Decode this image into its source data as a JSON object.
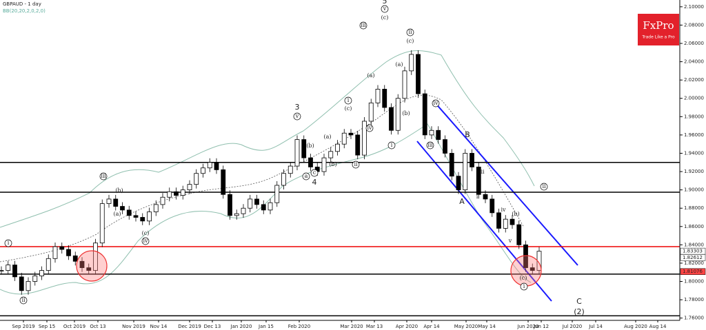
{
  "chart_data": {
    "type": "candlestick",
    "title": "GBPAUD - 1 day",
    "subtitle": "BB(20,20,2,0,2,0)",
    "brand": "FxPro",
    "brand_tagline": "Trade Like a Pro",
    "x_labels": [
      "Sep 2019",
      "Sep 15",
      "Oct 2019",
      "Oct 13",
      "Nov 2019",
      "Nov 14",
      "Dec 2019",
      "Dec 13",
      "Jan 2020",
      "Jan 15",
      "Feb 2020",
      "Mar 2020",
      "Mar 13",
      "Apr 2020",
      "Apr 14",
      "May 2020",
      "May 14",
      "Jun 2020",
      "Jun 12",
      "Jul 2020",
      "Jul 14",
      "Aug 2020",
      "Aug 14"
    ],
    "close": [
      1.812,
      1.818,
      1.805,
      1.79,
      1.8,
      1.806,
      1.812,
      1.825,
      1.838,
      1.835,
      1.828,
      1.822,
      1.815,
      1.812,
      1.842,
      1.885,
      1.89,
      1.882,
      1.878,
      1.872,
      1.87,
      1.866,
      1.876,
      1.884,
      1.892,
      1.898,
      1.894,
      1.9,
      1.906,
      1.918,
      1.924,
      1.93,
      1.922,
      1.895,
      1.872,
      1.874,
      1.88,
      1.89,
      1.884,
      1.878,
      1.886,
      1.905,
      1.918,
      1.926,
      1.955,
      1.935,
      1.925,
      1.92,
      1.935,
      1.942,
      1.95,
      1.962,
      1.96,
      1.938,
      1.975,
      1.995,
      2.01,
      1.99,
      1.965,
      2.0,
      2.03,
      2.048,
      2.005,
      1.96,
      1.965,
      1.955,
      1.94,
      1.915,
      1.9,
      1.94,
      1.925,
      1.895,
      1.89,
      1.875,
      1.858,
      1.868,
      1.862,
      1.84,
      1.815,
      1.812,
      1.833
    ],
    "ylim": [
      1.7575,
      2.1074
    ],
    "yticks": [
      {
        "value": 1.76,
        "label": "1.76000"
      },
      {
        "value": 1.78,
        "label": "1.78000"
      },
      {
        "value": 1.8,
        "label": "1.80000"
      },
      {
        "value": 1.82,
        "label": "1.82000"
      },
      {
        "value": 1.84,
        "label": "1.84000"
      },
      {
        "value": 1.86,
        "label": "1.86000"
      },
      {
        "value": 1.88,
        "label": "1.88000"
      },
      {
        "value": 1.9,
        "label": "1.90000"
      },
      {
        "value": 1.92,
        "label": "1.92000"
      },
      {
        "value": 1.94,
        "label": "1.94000"
      },
      {
        "value": 1.96,
        "label": "1.96000"
      },
      {
        "value": 1.98,
        "label": "1.98000"
      },
      {
        "value": 2.0,
        "label": "2.00000"
      },
      {
        "value": 2.02,
        "label": "2.02000"
      },
      {
        "value": 2.04,
        "label": "2.04000"
      },
      {
        "value": 2.06,
        "label": "2.06000"
      },
      {
        "value": 2.08,
        "label": "2.08000"
      },
      {
        "value": 2.1,
        "label": "2.10000"
      }
    ],
    "price_labels": [
      {
        "value": 1.83303,
        "color": "#ffffff"
      },
      {
        "value": 1.82612,
        "color": "#ffffff"
      },
      {
        "value": 1.81076,
        "color": "#ff4444"
      }
    ],
    "levels": [
      {
        "value": 1.93,
        "color": "#000000"
      },
      {
        "value": 1.8975,
        "color": "#000000"
      },
      {
        "value": 1.838,
        "color": "#ee0000"
      },
      {
        "value": 1.808,
        "color": "#000000"
      },
      {
        "value": 1.7625,
        "color": "#000000"
      }
    ],
    "annotations": [
      {
        "text": "3",
        "circled": false
      },
      {
        "text": "v",
        "circled": true
      },
      {
        "text": "4",
        "circled": false
      },
      {
        "text": "5",
        "circled": false
      },
      {
        "text": "v",
        "circled": true
      },
      {
        "text": "(c)",
        "circled": false
      },
      {
        "text": "iii",
        "circled": true
      },
      {
        "text": "ii",
        "circled": true
      },
      {
        "text": "(c)",
        "circled": false
      },
      {
        "text": "(a)",
        "circled": false
      },
      {
        "text": "(b)",
        "circled": false
      },
      {
        "text": "i",
        "circled": true
      },
      {
        "text": "ii",
        "circled": true
      },
      {
        "text": "iv",
        "circled": true
      },
      {
        "text": "iii",
        "circled": true
      },
      {
        "text": "B",
        "circled": false
      },
      {
        "text": "A",
        "circled": false
      },
      {
        "text": "ii",
        "circled": false
      },
      {
        "text": "iv",
        "circled": false
      },
      {
        "text": "(b)",
        "circled": false
      },
      {
        "text": "v",
        "circled": false
      },
      {
        "text": "(c)",
        "circled": false
      },
      {
        "text": "i",
        "circled": true
      },
      {
        "text": "ii",
        "circled": true
      },
      {
        "text": "C",
        "circled": false
      },
      {
        "text": "(2)",
        "circled": false
      },
      {
        "text": "i",
        "circled": true
      },
      {
        "text": "ii",
        "circled": true
      },
      {
        "text": "iii",
        "circled": true
      },
      {
        "text": "(b)",
        "circled": false
      },
      {
        "text": "(a)",
        "circled": false
      },
      {
        "text": "(c)",
        "circled": false
      },
      {
        "text": "iv",
        "circled": true
      },
      {
        "text": "i",
        "circled": true
      },
      {
        "text": "(c)",
        "circled": false
      },
      {
        "text": "(a)",
        "circled": false
      },
      {
        "text": "iv",
        "circled": true
      },
      {
        "text": "(a)",
        "circled": false
      },
      {
        "text": "(b)",
        "circled": false
      },
      {
        "text": "a",
        "circled": true
      },
      {
        "text": "c",
        "circled": true
      },
      {
        "text": "(b)",
        "circled": false
      },
      {
        "text": "i",
        "circled": false
      }
    ]
  }
}
